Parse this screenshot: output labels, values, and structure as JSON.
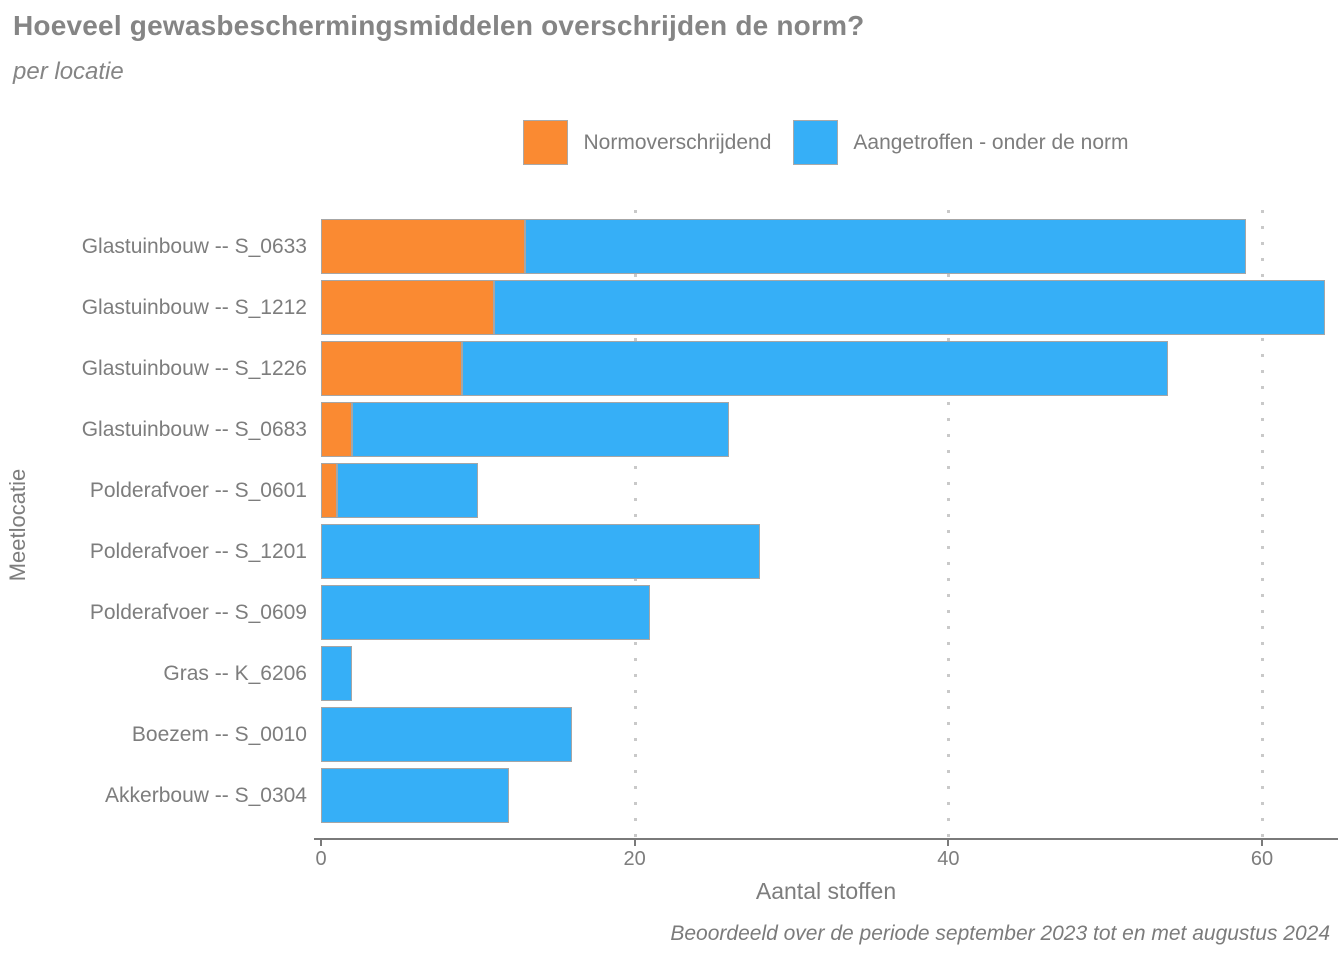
{
  "title": "Hoeveel gewasbeschermingsmiddelen overschrijden de norm?",
  "subtitle": "per locatie",
  "legend": {
    "items": [
      {
        "label": "Normoverschrijdend",
        "color": "#FA8A32"
      },
      {
        "label": "Aangetroffen - onder de norm",
        "color": "#36AFF7"
      }
    ]
  },
  "caption": "Beoordeeld over de periode september 2023 tot en met augustus 2024",
  "chart_data": {
    "type": "bar",
    "orientation": "horizontal",
    "stacked": true,
    "title": "Hoeveel gewasbeschermingsmiddelen overschrijden de norm?",
    "subtitle": "per locatie",
    "xlabel": "Aantal stoffen",
    "ylabel": "Meetlocatie",
    "categories": [
      "Glastuinbouw -- S_0633",
      "Glastuinbouw -- S_1212",
      "Glastuinbouw -- S_1226",
      "Glastuinbouw -- S_0683",
      "Polderafvoer -- S_0601",
      "Polderafvoer -- S_1201",
      "Polderafvoer -- S_0609",
      "Gras -- K_6206",
      "Boezem -- S_0010",
      "Akkerbouw -- S_0304"
    ],
    "series": [
      {
        "name": "Normoverschrijdend",
        "color": "#FA8A32",
        "values": [
          13,
          11,
          9,
          2,
          1,
          0,
          0,
          0,
          0,
          0
        ]
      },
      {
        "name": "Aangetroffen - onder de norm",
        "color": "#36AFF7",
        "values": [
          46,
          53,
          45,
          24,
          9,
          28,
          21,
          2,
          16,
          12
        ]
      }
    ],
    "totals": [
      59,
      64,
      54,
      26,
      10,
      28,
      21,
      2,
      16,
      12
    ],
    "xlim": [
      0,
      64.4
    ],
    "xticks": [
      0,
      20,
      40,
      60
    ],
    "gridlines": [
      20,
      40,
      60
    ],
    "grid_style": "dotted",
    "legend_position": "top-center"
  },
  "colors": {
    "accent_orange": "#FA8A32",
    "accent_blue": "#36AFF7",
    "bar_border": "#A6A6A6",
    "axis": "#7A7A7A",
    "text": "#7D7D7D",
    "title_text": "#858585",
    "gridline": "#C9C9C9"
  }
}
